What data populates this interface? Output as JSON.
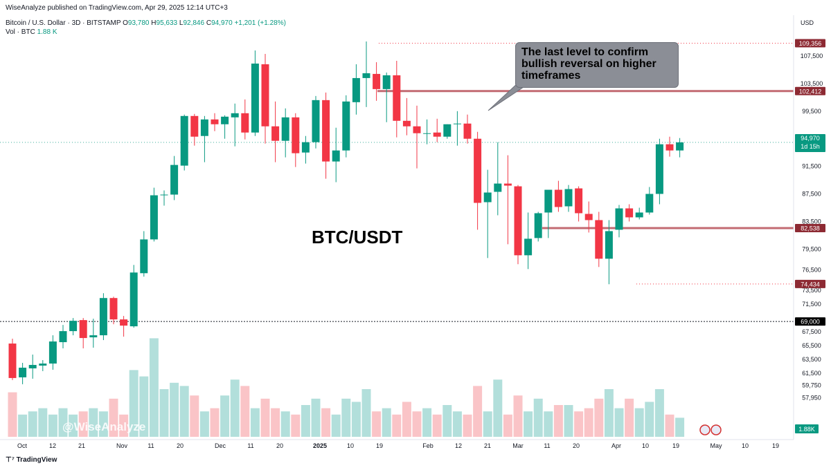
{
  "publisher": "WiseAnalyze published on TradingView.com, Apr 29, 2025 12:14 UTC+3",
  "symbol": {
    "name": "Bitcoin / U.S. Dollar · 3D · BITSTAMP",
    "open_label": "O",
    "open": "93,780",
    "high_label": "H",
    "high": "95,633",
    "low_label": "L",
    "low": "92,846",
    "close_label": "C",
    "close": "94,970",
    "change": "+1,201 (+1.28%)"
  },
  "volume": {
    "label": "Vol · BTC",
    "value": "1.88 K"
  },
  "currency": "USD",
  "callout_text": "The last level to confirm bullish reversal on higher timeframes",
  "pair_label": "BTC/USDT",
  "watermark": "@WiseAnalyze",
  "branding": "TradingView",
  "colors": {
    "up": "#089981",
    "down": "#f23645",
    "vol_up": "#b2dfdb",
    "vol_down": "#fac4c7",
    "level_box": "#8d2a33"
  },
  "chart_data": {
    "type": "candlestick",
    "interval": "3D",
    "price_axis_ticks": [
      "109,356",
      "107,500",
      "103,500",
      "102,412",
      "99,500",
      "95,500",
      "94,970",
      "91,500",
      "87,500",
      "83,500",
      "82,538",
      "79,500",
      "76,500",
      "74,434",
      "73,500",
      "71,500",
      "69,000",
      "67,500",
      "65,500",
      "63,500",
      "61,500",
      "59,750",
      "57,950"
    ],
    "price_ticks": [
      107500,
      103500,
      99500,
      95500,
      91500,
      87500,
      83500,
      79500,
      76500,
      73500,
      71500,
      67500,
      65500,
      63500,
      61500,
      59750,
      57950
    ],
    "x_ticks": [
      "Oct",
      "12",
      "21",
      "Nov",
      "11",
      "20",
      "Dec",
      "11",
      "20",
      "2025",
      "10",
      "19",
      "Feb",
      "12",
      "21",
      "Mar",
      "11",
      "20",
      "Apr",
      "10",
      "19",
      "May",
      "10",
      "19"
    ],
    "levels": [
      {
        "price": 109356,
        "label": "109,356",
        "style": "dotted-red"
      },
      {
        "price": 102412,
        "label": "102,412",
        "style": "solid-red"
      },
      {
        "price": 82538,
        "label": "82,538",
        "style": "solid-red"
      },
      {
        "price": 74434,
        "label": "74,434",
        "style": "dotted-red"
      },
      {
        "price": 69000,
        "label": "69,000",
        "style": "dotted-black"
      }
    ],
    "current_price": {
      "value": "94,970",
      "countdown": "1d 15h"
    },
    "volume_label": "1.88K",
    "candles": [
      [
        65800,
        66500,
        60500,
        60800,
        28
      ],
      [
        60900,
        63000,
        59900,
        62300,
        14
      ],
      [
        62200,
        64200,
        60700,
        62700,
        16
      ],
      [
        62600,
        63400,
        61800,
        62900,
        18
      ],
      [
        62900,
        67000,
        62000,
        66100,
        14
      ],
      [
        66000,
        68500,
        65100,
        67600,
        18
      ],
      [
        67600,
        69500,
        67000,
        69100,
        14
      ],
      [
        69200,
        69500,
        65100,
        66600,
        16
      ],
      [
        66700,
        69400,
        65200,
        67000,
        18
      ],
      [
        67000,
        73100,
        66300,
        72400,
        16
      ],
      [
        72400,
        72600,
        68600,
        69300,
        24
      ],
      [
        69300,
        69800,
        66800,
        68400,
        14
      ],
      [
        68300,
        77200,
        68100,
        76100,
        42
      ],
      [
        76000,
        82100,
        75500,
        80900,
        38
      ],
      [
        80900,
        88400,
        80600,
        87300,
        62
      ],
      [
        87300,
        88000,
        85800,
        87400,
        30
      ],
      [
        87400,
        93000,
        86600,
        91700,
        34
      ],
      [
        91600,
        99000,
        90900,
        98800,
        32
      ],
      [
        98800,
        99100,
        94500,
        95800,
        26
      ],
      [
        95900,
        98800,
        92100,
        98300,
        16
      ],
      [
        98300,
        99200,
        96600,
        97600,
        18
      ],
      [
        97600,
        98900,
        95500,
        98700,
        26
      ],
      [
        98600,
        100600,
        94400,
        99200,
        36
      ],
      [
        99200,
        101200,
        95400,
        96400,
        32
      ],
      [
        96400,
        108300,
        95900,
        106400,
        18
      ],
      [
        106300,
        107800,
        94800,
        97300,
        24
      ],
      [
        97300,
        100900,
        92100,
        95200,
        18
      ],
      [
        95200,
        99900,
        92800,
        98600,
        16
      ],
      [
        98600,
        99200,
        91400,
        93400,
        14
      ],
      [
        93500,
        95900,
        91900,
        95000,
        20
      ],
      [
        95000,
        101700,
        94100,
        101100,
        24
      ],
      [
        101100,
        102200,
        89700,
        92200,
        18
      ],
      [
        92200,
        97100,
        89200,
        93800,
        14
      ],
      [
        93800,
        101800,
        92800,
        100900,
        24
      ],
      [
        100800,
        106300,
        99000,
        104300,
        22
      ],
      [
        104300,
        109600,
        100100,
        105000,
        30
      ],
      [
        104900,
        106600,
        101000,
        102700,
        16
      ],
      [
        102700,
        105100,
        97900,
        104700,
        18
      ],
      [
        104700,
        106800,
        95700,
        98100,
        14
      ],
      [
        98100,
        101400,
        96000,
        97300,
        22
      ],
      [
        97300,
        100300,
        91200,
        96300,
        16
      ],
      [
        96300,
        98300,
        94700,
        96300,
        18
      ],
      [
        96400,
        98400,
        95000,
        95800,
        14
      ],
      [
        95800,
        97600,
        95500,
        97600,
        20
      ],
      [
        97600,
        99500,
        94500,
        97700,
        16
      ],
      [
        97700,
        99000,
        94800,
        95500,
        14
      ],
      [
        95500,
        96500,
        82300,
        86200,
        32
      ],
      [
        86300,
        91000,
        78200,
        87700,
        16
      ],
      [
        87800,
        95000,
        84400,
        89000,
        36
      ],
      [
        89000,
        93100,
        80200,
        88700,
        14
      ],
      [
        88600,
        88800,
        77300,
        78600,
        26
      ],
      [
        78600,
        84800,
        76600,
        81000,
        16
      ],
      [
        81100,
        84900,
        80600,
        84700,
        24
      ],
      [
        84800,
        88000,
        81100,
        88100,
        16
      ],
      [
        88100,
        89400,
        84900,
        85600,
        20
      ],
      [
        85700,
        88800,
        84900,
        88200,
        20
      ],
      [
        88300,
        88600,
        83500,
        84700,
        16
      ],
      [
        84600,
        86400,
        81900,
        83700,
        18
      ],
      [
        83700,
        84900,
        76900,
        78100,
        24
      ],
      [
        78100,
        83700,
        74400,
        82100,
        30
      ],
      [
        82300,
        85900,
        81200,
        85400,
        18
      ],
      [
        85400,
        86000,
        83500,
        84100,
        24
      ],
      [
        84100,
        85500,
        83800,
        84800,
        18
      ],
      [
        84800,
        88500,
        84500,
        87500,
        22
      ],
      [
        87500,
        95500,
        86000,
        94700,
        30
      ],
      [
        94700,
        95800,
        92900,
        93800,
        14
      ],
      [
        93800,
        95600,
        92800,
        94970,
        12
      ]
    ]
  }
}
